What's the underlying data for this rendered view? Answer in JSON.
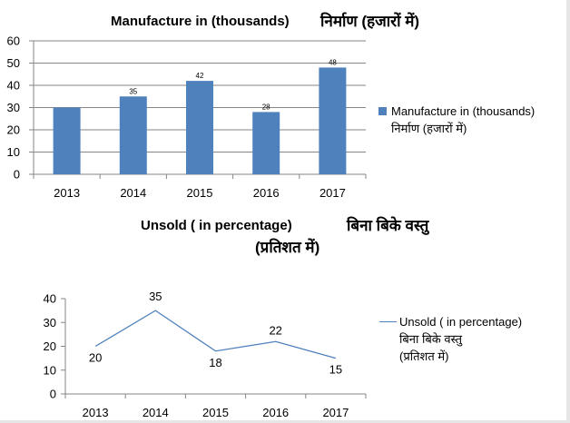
{
  "chart_data": [
    {
      "type": "bar",
      "title": "Manufacture in (thousands)",
      "title_hindi": "निर्माण (हजारों में)",
      "categories": [
        "2013",
        "2014",
        "2015",
        "2016",
        "2017"
      ],
      "series": [
        {
          "name": "Manufacture in (thousands)",
          "name_hindi": "निर्माण (हजारों में)",
          "values": [
            30,
            35,
            42,
            28,
            48
          ],
          "color": "#4F81BD"
        }
      ],
      "data_labels": [
        "",
        "35",
        "42",
        "28",
        "48"
      ],
      "ylim": [
        0,
        60
      ],
      "yticks": [
        0,
        10,
        20,
        30,
        40,
        50,
        60
      ],
      "grid": true,
      "legend": "right"
    },
    {
      "type": "line",
      "title": "Unsold ( in percentage)",
      "title_hindi": "बिना बिके वस्तु",
      "title_hindi_line2": "(प्रतिशत में)",
      "categories": [
        "2013",
        "2014",
        "2015",
        "2016",
        "2017"
      ],
      "series": [
        {
          "name": "Unsold ( in percentage)",
          "name_hindi": "बिना बिके वस्तु",
          "name_hindi_line2": "(प्रतिशत में)",
          "values": [
            20,
            35,
            18,
            22,
            15
          ],
          "color": "#4F81BD"
        }
      ],
      "data_labels": [
        "20",
        "35",
        "18",
        "22",
        "15"
      ],
      "ylim": [
        0,
        40
      ],
      "yticks": [
        0,
        10,
        20,
        30,
        40
      ],
      "grid": false,
      "legend": "right"
    }
  ]
}
